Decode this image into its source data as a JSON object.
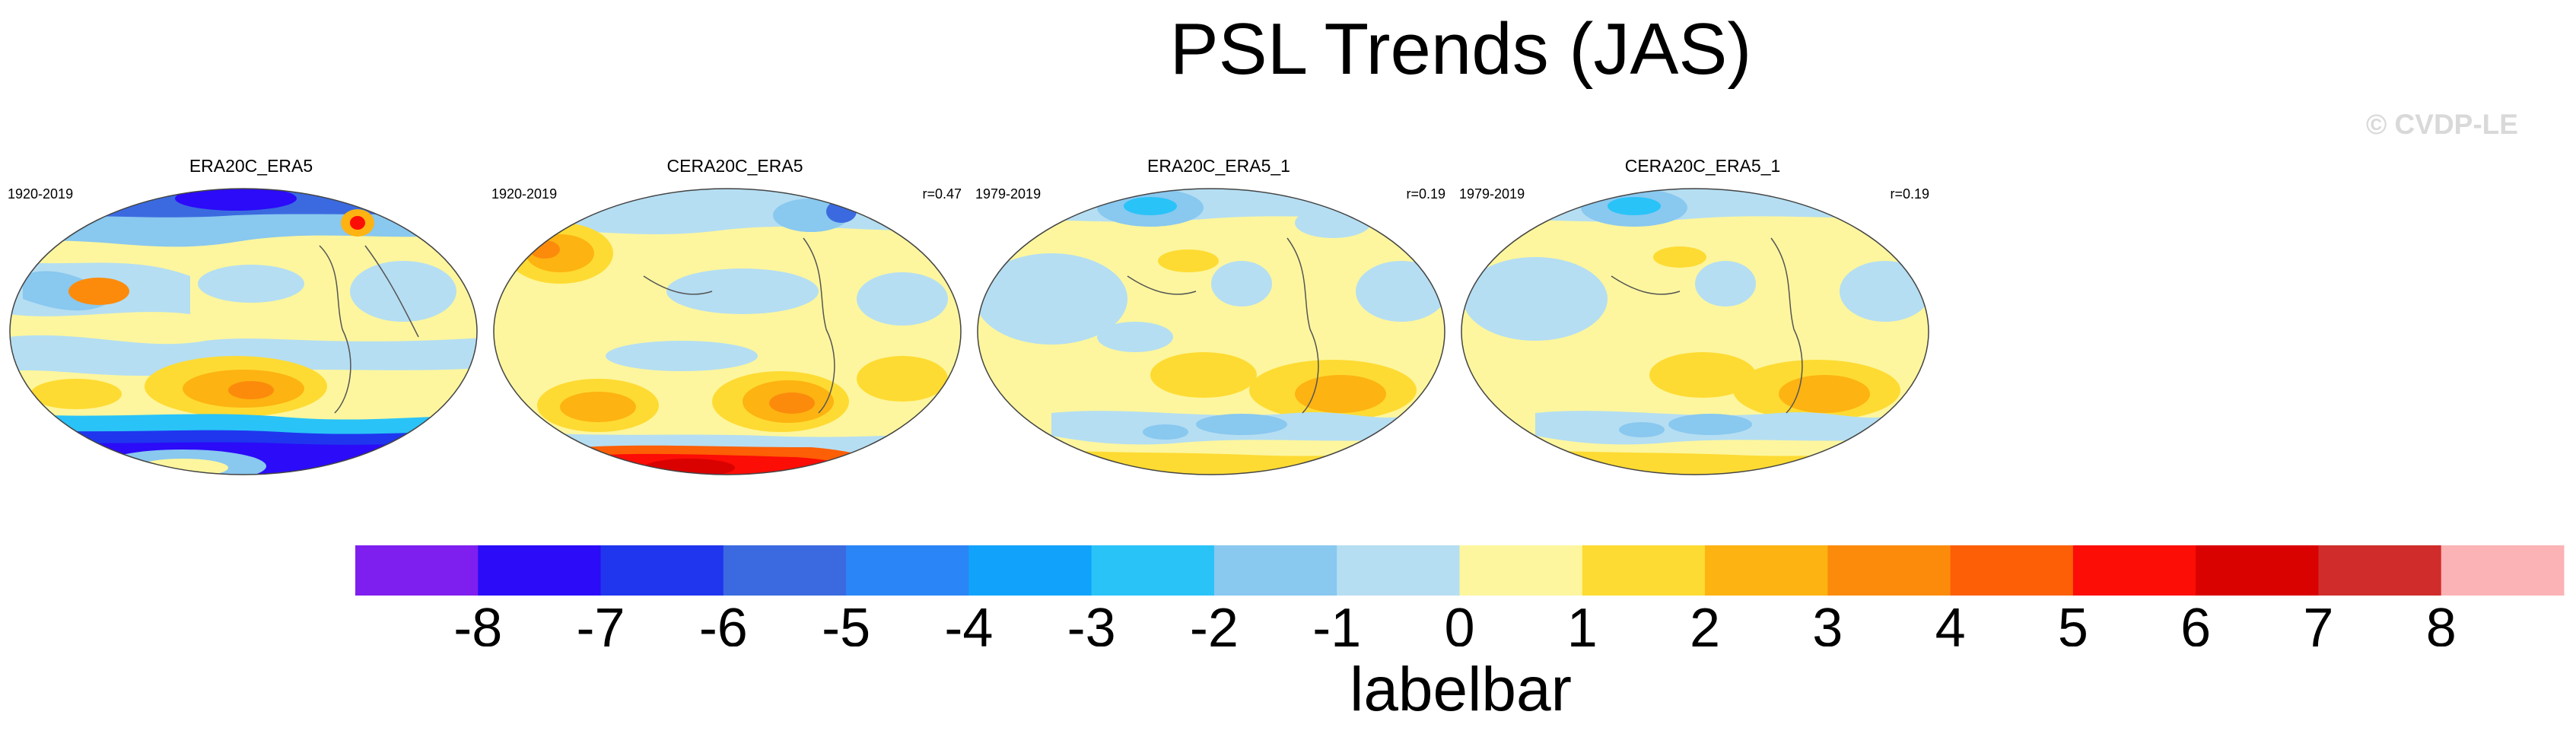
{
  "chart_data": {
    "type": "heatmap",
    "title": "PSL Trends (JAS)",
    "watermark": "© CVDP-LE",
    "colorbar": {
      "title": "labelbar",
      "levels": [
        -8,
        -7,
        -6,
        -5,
        -4,
        -3,
        -2,
        -1,
        0,
        1,
        2,
        3,
        4,
        5,
        6,
        7,
        8
      ],
      "tick_labels": [
        "-8",
        "-7",
        "-6",
        "-5",
        "-4",
        "-3",
        "-2",
        "-1",
        "0",
        "1",
        "2",
        "3",
        "4",
        "5",
        "6",
        "7",
        "8"
      ],
      "colors": [
        "#7f1fef",
        "#2b0bf8",
        "#1f36ee",
        "#3b6ae0",
        "#2a86f7",
        "#11a3fb",
        "#29c3f8",
        "#89c8ef",
        "#b5def2",
        "#fdf69e",
        "#fedb33",
        "#fdb311",
        "#fc8b0c",
        "#fc5f05",
        "#fc0d06",
        "#d90201",
        "#d02c2c",
        "#fbb3b5"
      ]
    },
    "panels": [
      {
        "title": "ERA20C_ERA5",
        "period": "1920-2019",
        "r": ""
      },
      {
        "title": "CERA20C_ERA5",
        "period": "1920-2019",
        "r": "r=0.47"
      },
      {
        "title": "ERA20C_ERA5_1",
        "period": "1979-2019",
        "r": "r=0.19"
      },
      {
        "title": "CERA20C_ERA5_1",
        "period": "1979-2019",
        "r": "r=0.19"
      }
    ]
  }
}
